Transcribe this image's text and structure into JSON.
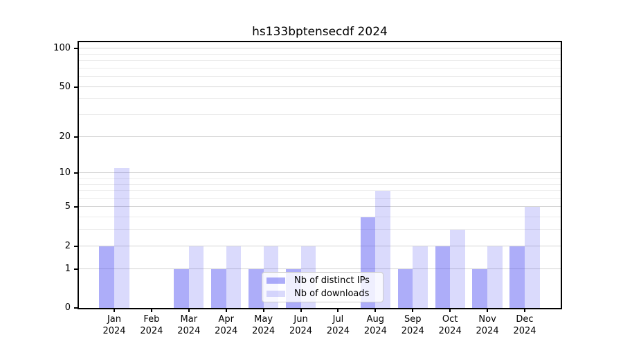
{
  "chart_data": {
    "type": "bar",
    "title": "hs133bptensecdf 2024",
    "categories": [
      "Jan",
      "Feb",
      "Mar",
      "Apr",
      "May",
      "Jun",
      "Jul",
      "Aug",
      "Sep",
      "Oct",
      "Nov",
      "Dec"
    ],
    "year_label": "2024",
    "series": [
      {
        "name": "Nb of distinct IPs",
        "color": "#3c3cf0",
        "alpha": 0.42,
        "values": [
          2,
          0,
          1,
          1,
          1,
          1,
          0,
          4,
          1,
          2,
          1,
          2
        ]
      },
      {
        "name": "Nb of downloads",
        "color": "#3c3cf0",
        "alpha": 0.19,
        "values": [
          11,
          0,
          2,
          2,
          2,
          2,
          0,
          7,
          2,
          3,
          2,
          5
        ]
      }
    ],
    "scale": "log1p",
    "ylim": [
      0,
      112
    ],
    "yticks": [
      0,
      1,
      2,
      5,
      10,
      20,
      50,
      100
    ],
    "minor_yticks": [
      3,
      4,
      6,
      7,
      8,
      9,
      30,
      40,
      60,
      70,
      80,
      90
    ],
    "grid": true,
    "legend_position": "lower center",
    "colors": {
      "major_grid": "#d2d2d2",
      "minor_grid": "#ececec",
      "spine": "#000000",
      "background": "#ffffff"
    }
  }
}
